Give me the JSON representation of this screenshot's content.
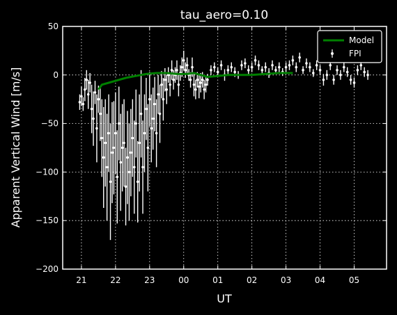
{
  "chart_data": {
    "type": "scatter",
    "title": "tau_aero=0.10",
    "xlabel": "UT",
    "ylabel": "Apparent Vertical Wind [m/s]",
    "xlim": [
      20.45,
      29.95
    ],
    "ylim": [
      -200,
      50
    ],
    "xticks": [
      21,
      22,
      23,
      24,
      25,
      26,
      27,
      28,
      29
    ],
    "xtick_labels": [
      "21",
      "22",
      "23",
      "00",
      "01",
      "02",
      "03",
      "04",
      "05"
    ],
    "yticks": [
      -200,
      -150,
      -100,
      -50,
      0,
      50
    ],
    "ytick_labels": [
      "−200",
      "−150",
      "−100",
      "−50",
      "0",
      "50"
    ],
    "grid": true,
    "legend": "top-right",
    "colors": {
      "model": "#008000",
      "fpi": "#ffffff",
      "background": "#000000",
      "axes": "#ffffff"
    },
    "series": [
      {
        "name": "Model",
        "kind": "line",
        "x": [
          21.5,
          21.6,
          21.8,
          22.0,
          22.3,
          22.6,
          22.9,
          23.2,
          23.5,
          23.8,
          24.1,
          24.3,
          24.5,
          24.7,
          25.0,
          25.3,
          25.6,
          26.0,
          26.4,
          26.8,
          27.2
        ],
        "y": [
          -15,
          -10,
          -8,
          -6,
          -3,
          -1,
          1,
          2,
          2,
          1,
          1,
          2,
          0,
          -2,
          -1,
          0,
          0,
          0,
          1,
          2,
          2
        ]
      },
      {
        "name": "FPI",
        "kind": "errorbar",
        "x": [
          20.95,
          21.0,
          21.05,
          21.1,
          21.15,
          21.2,
          21.25,
          21.3,
          21.35,
          21.4,
          21.45,
          21.5,
          21.55,
          21.6,
          21.65,
          21.7,
          21.75,
          21.8,
          21.85,
          21.9,
          21.95,
          22.0,
          22.05,
          22.1,
          22.15,
          22.2,
          22.25,
          22.3,
          22.35,
          22.4,
          22.45,
          22.5,
          22.55,
          22.6,
          22.65,
          22.7,
          22.75,
          22.8,
          22.85,
          22.9,
          22.95,
          23.0,
          23.05,
          23.1,
          23.15,
          23.2,
          23.25,
          23.3,
          23.35,
          23.4,
          23.45,
          23.5,
          23.55,
          23.6,
          23.65,
          23.7,
          23.75,
          23.8,
          23.85,
          23.9,
          23.95,
          24.0,
          24.05,
          24.1,
          24.15,
          24.2,
          24.25,
          24.3,
          24.35,
          24.4,
          24.45,
          24.5,
          24.55,
          24.6,
          24.65,
          24.7,
          24.8,
          24.9,
          25.0,
          25.1,
          25.2,
          25.3,
          25.4,
          25.5,
          25.6,
          25.7,
          25.8,
          25.9,
          26.0,
          26.1,
          26.2,
          26.3,
          26.4,
          26.5,
          26.6,
          26.7,
          26.8,
          26.9,
          27.0,
          27.1,
          27.2,
          27.3,
          27.4,
          27.5,
          27.6,
          27.7,
          27.8,
          27.9,
          28.0,
          28.1,
          28.2,
          28.3,
          28.4,
          28.5,
          28.6,
          28.7,
          28.8,
          28.9,
          29.0,
          29.1,
          29.2,
          29.3,
          29.4
        ],
        "y": [
          -28,
          -22,
          -30,
          -15,
          -5,
          -20,
          -8,
          -35,
          -45,
          -18,
          -55,
          -25,
          -40,
          -65,
          -85,
          -70,
          -95,
          -60,
          -110,
          -80,
          -75,
          -60,
          -105,
          -50,
          -90,
          -75,
          -70,
          -115,
          -85,
          -100,
          -80,
          -65,
          -95,
          -50,
          -110,
          -70,
          -40,
          -95,
          -60,
          -35,
          -75,
          -25,
          -55,
          -45,
          -30,
          -60,
          -20,
          -40,
          -10,
          -25,
          -5,
          -15,
          0,
          -10,
          5,
          -5,
          0,
          5,
          -10,
          2,
          8,
          15,
          5,
          10,
          0,
          -5,
          8,
          -10,
          -15,
          -5,
          -12,
          -8,
          -5,
          -15,
          -10,
          -5,
          5,
          8,
          3,
          10,
          0,
          5,
          8,
          3,
          0,
          10,
          12,
          5,
          8,
          15,
          10,
          5,
          8,
          2,
          10,
          5,
          8,
          3,
          8,
          10,
          15,
          8,
          18,
          5,
          12,
          8,
          2,
          10,
          5,
          -5,
          0,
          10,
          -5,
          5,
          0,
          8,
          3,
          -5,
          -8,
          5,
          10,
          3,
          0
        ],
        "err": [
          8,
          10,
          7,
          12,
          10,
          15,
          10,
          25,
          28,
          12,
          35,
          14,
          28,
          40,
          52,
          45,
          55,
          40,
          60,
          52,
          48,
          42,
          48,
          38,
          50,
          45,
          45,
          40,
          48,
          50,
          45,
          40,
          48,
          35,
          42,
          50,
          45,
          48,
          40,
          32,
          45,
          28,
          35,
          32,
          28,
          35,
          20,
          30,
          14,
          22,
          12,
          15,
          8,
          12,
          10,
          10,
          8,
          10,
          12,
          8,
          10,
          10,
          8,
          8,
          6,
          8,
          10,
          12,
          10,
          8,
          12,
          10,
          8,
          10,
          8,
          6,
          5,
          5,
          5,
          5,
          6,
          5,
          5,
          5,
          4,
          5,
          5,
          5,
          5,
          5,
          5,
          4,
          5,
          5,
          5,
          4,
          5,
          4,
          5,
          5,
          5,
          5,
          5,
          4,
          5,
          5,
          4,
          5,
          5,
          6,
          5,
          5,
          5,
          5,
          5,
          5,
          5,
          5,
          5,
          5,
          5,
          5,
          5
        ]
      }
    ]
  }
}
